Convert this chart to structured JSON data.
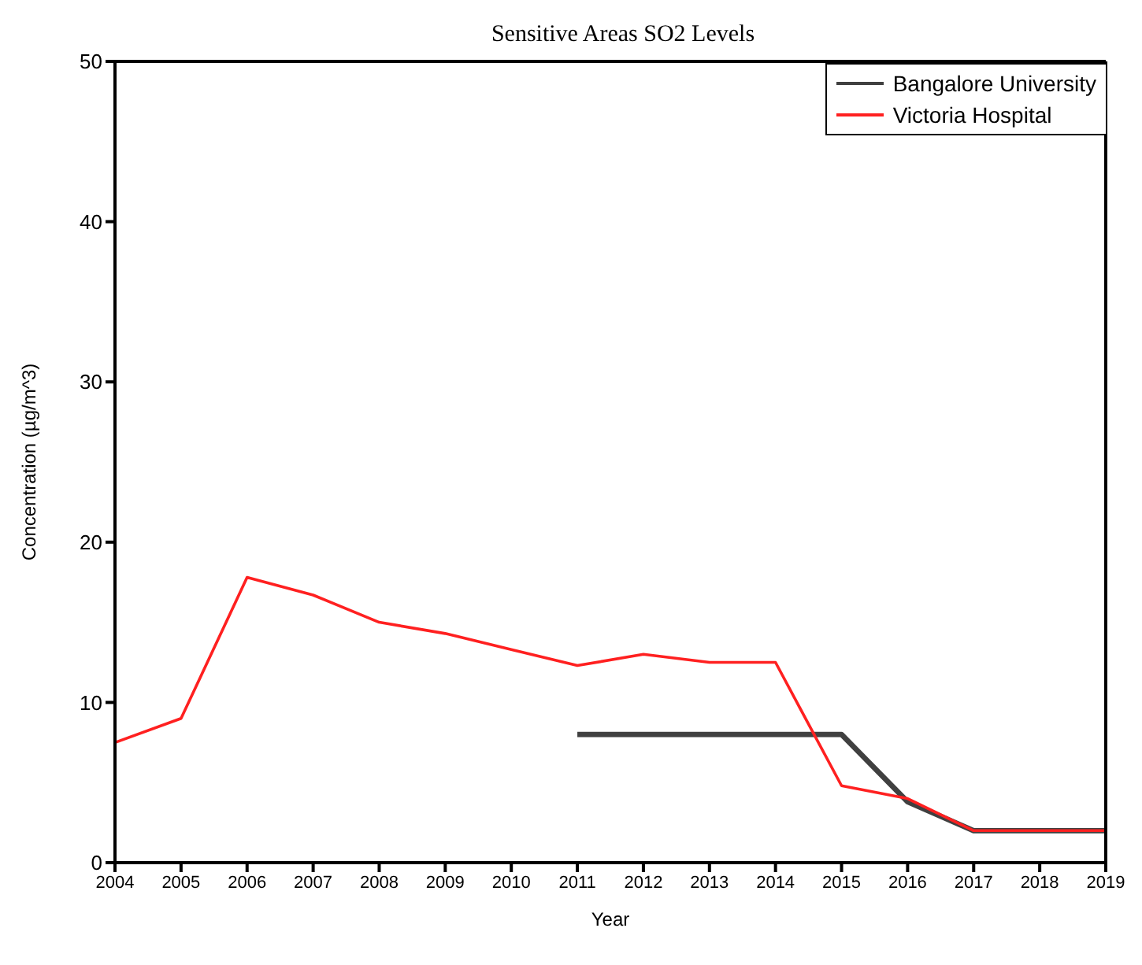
{
  "chart_data": {
    "type": "line",
    "title": "Sensitive Areas SO2 Levels",
    "xlabel": "Year",
    "ylabel": "Concentration (µg/m^3)",
    "x": [
      2004,
      2005,
      2006,
      2007,
      2008,
      2009,
      2010,
      2011,
      2012,
      2013,
      2014,
      2015,
      2016,
      2017,
      2018,
      2019
    ],
    "series": [
      {
        "name": "Bangalore University",
        "color": "#404040",
        "values": [
          null,
          null,
          null,
          null,
          null,
          null,
          null,
          8.0,
          8.0,
          8.0,
          8.0,
          8.0,
          3.8,
          2.0,
          2.0,
          2.0
        ]
      },
      {
        "name": "Victoria Hospital",
        "color": "#ff2020",
        "values": [
          7.5,
          9.0,
          17.8,
          16.7,
          15.0,
          14.3,
          13.3,
          12.3,
          13.0,
          12.5,
          12.5,
          4.8,
          4.0,
          2.0,
          2.0,
          2.0
        ]
      }
    ],
    "xlim": [
      2004,
      2019
    ],
    "xticks": [
      2004,
      2005,
      2006,
      2007,
      2008,
      2009,
      2010,
      2011,
      2012,
      2013,
      2014,
      2015,
      2016,
      2017,
      2018,
      2019
    ],
    "ylim": [
      0,
      50
    ],
    "yticks": [
      0,
      10,
      20,
      30,
      40,
      50
    ],
    "grid": false,
    "legend": "top right",
    "marker": "none",
    "line_style": "solid"
  }
}
